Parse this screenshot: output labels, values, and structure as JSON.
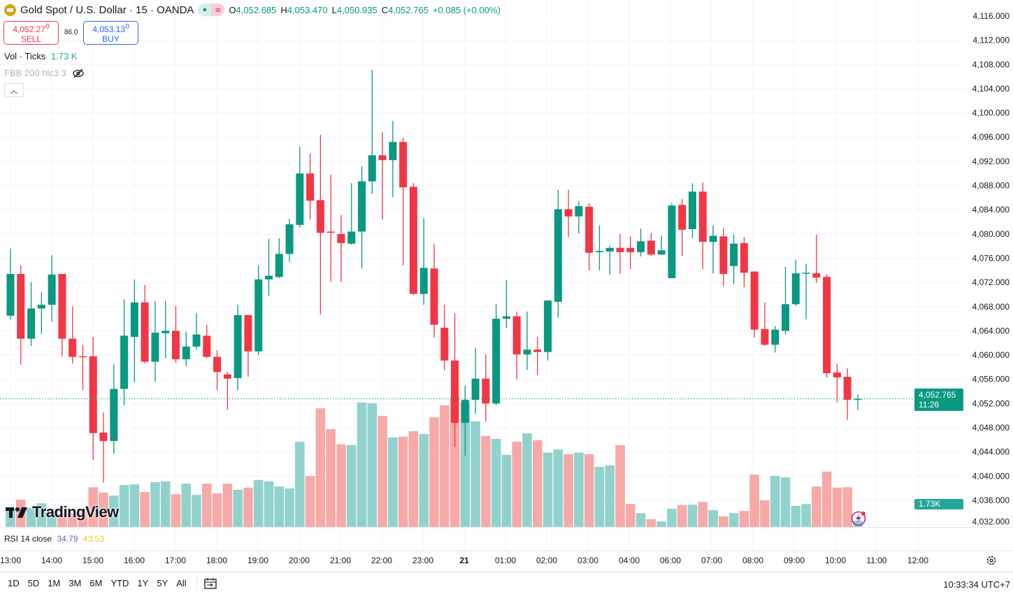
{
  "header": {
    "title": "Gold Spot / U.S. Dollar · 15 · OANDA",
    "ohlc": {
      "o_label": "O",
      "o": "4,052.685",
      "h_label": "H",
      "h": "4,053.470",
      "l_label": "L",
      "l": "4,050.935",
      "c_label": "C",
      "c": "4,052.765",
      "change": "+0.085 (+0.00%)"
    }
  },
  "trade": {
    "sell_price": "4,052.27",
    "sell_sup": "0",
    "sell_label": "SELL",
    "spread": "86.0",
    "buy_price": "4,053.13",
    "buy_sup": "0",
    "buy_label": "BUY"
  },
  "legend": {
    "vol_label": "Vol · Ticks",
    "vol_value": "1.73 K",
    "fbb": "FBB 200 hlc3 3"
  },
  "watermark": "TradingView",
  "price_tag": {
    "price": "4,052.765",
    "countdown": "11:26"
  },
  "volume_tag": "1.73K",
  "rsi": {
    "label": "RSI 14 close",
    "v1": "34.79",
    "v2": "43.53",
    "c1": "#7e57c2",
    "c2": "#f7c325"
  },
  "bottom": {
    "ranges": [
      "1D",
      "5D",
      "1M",
      "3M",
      "6M",
      "YTD",
      "1Y",
      "5Y",
      "All"
    ],
    "clock": "10:33:34 UTC+7"
  },
  "colors": {
    "up": "#089981",
    "down": "#f23645",
    "up_vol": "#92d2cc",
    "down_vol": "#f7a9a7"
  },
  "chart_data": {
    "type": "candlestick",
    "title": "Gold Spot / U.S. Dollar · 15 · OANDA",
    "interval_minutes": 15,
    "price_ticks": [
      "4,116.000",
      "4,112.000",
      "4,108.000",
      "4,104.000",
      "4,100.000",
      "4,096.000",
      "4,092.000",
      "4,088.000",
      "4,084.000",
      "4,080.000",
      "4,076.000",
      "4,072.000",
      "4,068.000",
      "4,064.000",
      "4,060.000",
      "4,056.000",
      "4,052.000",
      "4,048.000",
      "4,044.000",
      "4,040.000",
      "4,036.000",
      "4,032.000"
    ],
    "ylim": [
      4032,
      4116
    ],
    "time_ticks": [
      "13:00",
      "14:00",
      "15:00",
      "16:00",
      "17:00",
      "18:00",
      "19:00",
      "20:00",
      "21:00",
      "22:00",
      "23:00",
      "21",
      "01:00",
      "02:00",
      "03:00",
      "04:00",
      "06:00",
      "07:00",
      "08:00",
      "09:00",
      "10:00",
      "11:00",
      "12:00"
    ],
    "first_candle_time": "13:00",
    "candles_ohlc": [
      [
        4066.5,
        4077.6,
        4065.9,
        4073.4
      ],
      [
        4073.4,
        4074.8,
        4058.4,
        4062.7
      ],
      [
        4062.7,
        4072.0,
        4061.5,
        4067.7
      ],
      [
        4067.7,
        4070.4,
        4063.5,
        4068.3
      ],
      [
        4068.3,
        4076.5,
        4065.5,
        4073.3
      ],
      [
        4073.4,
        4073.4,
        4059.8,
        4062.7
      ],
      [
        4062.7,
        4068.0,
        4058.6,
        4059.7
      ],
      [
        4059.8,
        4061.7,
        4054.2,
        4059.7
      ],
      [
        4059.8,
        4063.0,
        4042.7,
        4047.1
      ],
      [
        4047.2,
        4050.5,
        4038.9,
        4045.8
      ],
      [
        4045.8,
        4058.5,
        4043.7,
        4054.4
      ],
      [
        4054.4,
        4069.2,
        4051.7,
        4063.2
      ],
      [
        4063.0,
        4072.5,
        4055.5,
        4068.7
      ],
      [
        4068.7,
        4071.6,
        4058.6,
        4058.9
      ],
      [
        4058.9,
        4068.9,
        4055.6,
        4063.7
      ],
      [
        4063.6,
        4068.9,
        4059.5,
        4064.0
      ],
      [
        4064.0,
        4068.1,
        4058.7,
        4059.3
      ],
      [
        4059.3,
        4063.9,
        4058.2,
        4061.4
      ],
      [
        4061.4,
        4066.9,
        4060.9,
        4063.4
      ],
      [
        4063.2,
        4065.0,
        4059.5,
        4059.7
      ],
      [
        4059.7,
        4060.8,
        4054.2,
        4057.2
      ],
      [
        4056.8,
        4057.2,
        4051.0,
        4056.1
      ],
      [
        4056.2,
        4068.3,
        4054.2,
        4066.6
      ],
      [
        4066.6,
        4066.7,
        4056.4,
        4060.6
      ],
      [
        4060.6,
        4074.8,
        4060.0,
        4072.5
      ],
      [
        4072.5,
        4079.2,
        4069.8,
        4073.1
      ],
      [
        4072.9,
        4079.3,
        4072.7,
        4076.7
      ],
      [
        4076.7,
        4082.5,
        4075.4,
        4081.6
      ],
      [
        4081.5,
        4094.4,
        4081.1,
        4090.0
      ],
      [
        4090.0,
        4093.3,
        4082.4,
        4085.5
      ],
      [
        4085.6,
        4096.4,
        4066.7,
        4080.2
      ],
      [
        4080.4,
        4089.8,
        4072.1,
        4080.2
      ],
      [
        4080.0,
        4083.1,
        4072.1,
        4078.5
      ],
      [
        4078.4,
        4088.4,
        4078.2,
        4080.4
      ],
      [
        4080.4,
        4091.2,
        4074.3,
        4088.7
      ],
      [
        4088.7,
        4107.1,
        4086.6,
        4093.0
      ],
      [
        4093.0,
        4096.8,
        4082.4,
        4092.2
      ],
      [
        4092.2,
        4098.7,
        4086.1,
        4095.2
      ],
      [
        4095.2,
        4095.9,
        4074.8,
        4087.7
      ],
      [
        4087.8,
        4088.4,
        4069.9,
        4070.1
      ],
      [
        4070.1,
        4082.6,
        4068.3,
        4074.4
      ],
      [
        4074.3,
        4078.4,
        4062.9,
        4065.0
      ],
      [
        4064.5,
        4068.3,
        4057.5,
        4059.1
      ],
      [
        4059.1,
        4066.9,
        4044.8,
        4048.8
      ],
      [
        4048.8,
        4054.9,
        4043.4,
        4052.6
      ],
      [
        4052.6,
        4061.2,
        4050.3,
        4056.1
      ],
      [
        4056.1,
        4060.1,
        4049.0,
        4052.0
      ],
      [
        4052.0,
        4068.4,
        4051.7,
        4066.0
      ],
      [
        4066.0,
        4072.4,
        4064.5,
        4066.4
      ],
      [
        4066.4,
        4067.2,
        4056.0,
        4060.1
      ],
      [
        4060.1,
        4067.2,
        4057.5,
        4060.9
      ],
      [
        4060.9,
        4063.0,
        4056.7,
        4060.5
      ],
      [
        4060.5,
        4069.1,
        4059.1,
        4069.0
      ],
      [
        4068.8,
        4087.3,
        4066.2,
        4084.1
      ],
      [
        4084.1,
        4087.3,
        4079.5,
        4082.9
      ],
      [
        4082.9,
        4085.4,
        4080.1,
        4084.6
      ],
      [
        4084.5,
        4085.1,
        4074.0,
        4076.9
      ],
      [
        4077.0,
        4081.4,
        4074.0,
        4077.2
      ],
      [
        4077.1,
        4078.1,
        4073.3,
        4077.7
      ],
      [
        4077.7,
        4080.0,
        4073.4,
        4077.0
      ],
      [
        4077.7,
        4079.6,
        4074.2,
        4077.0
      ],
      [
        4077.0,
        4080.9,
        4076.3,
        4078.8
      ],
      [
        4078.9,
        4080.2,
        4076.4,
        4076.6
      ],
      [
        4076.6,
        4079.7,
        4076.6,
        4077.3
      ],
      [
        4072.7,
        4085.1,
        4072.7,
        4084.7
      ],
      [
        4084.8,
        4085.8,
        4076.4,
        4080.7
      ],
      [
        4080.8,
        4088.4,
        4079.3,
        4087.0
      ],
      [
        4087.0,
        4088.5,
        4074.2,
        4078.7
      ],
      [
        4078.7,
        4081.4,
        4073.5,
        4079.7
      ],
      [
        4079.6,
        4081.0,
        4071.4,
        4073.4
      ],
      [
        4074.7,
        4079.9,
        4071.7,
        4078.4
      ],
      [
        4078.5,
        4079.5,
        4071.2,
        4073.6
      ],
      [
        4073.8,
        4073.8,
        4062.9,
        4064.2
      ],
      [
        4064.3,
        4068.7,
        4061.5,
        4061.7
      ],
      [
        4061.7,
        4064.8,
        4060.4,
        4064.2
      ],
      [
        4064.0,
        4074.6,
        4063.4,
        4068.4
      ],
      [
        4068.4,
        4075.7,
        4068.1,
        4073.5
      ],
      [
        4073.5,
        4075.1,
        4065.9,
        4073.6
      ],
      [
        4073.5,
        4079.9,
        4071.9,
        4072.8
      ],
      [
        4072.9,
        4073.3,
        4056.3,
        4057.0
      ],
      [
        4057.1,
        4058.6,
        4052.2,
        4056.3
      ],
      [
        4056.4,
        4057.8,
        4049.3,
        4052.6
      ],
      [
        4052.685,
        4053.47,
        4050.935,
        4052.765
      ]
    ],
    "volume_k": [
      5.2,
      7.5,
      5.2,
      6.5,
      5.0,
      3.6,
      3.8,
      5.0,
      10.9,
      9.4,
      8.6,
      11.5,
      11.7,
      9.6,
      12.3,
      12.5,
      9.0,
      11.9,
      8.8,
      11.9,
      9.2,
      11.9,
      10.2,
      10.8,
      12.9,
      12.5,
      11.1,
      10.6,
      23.4,
      14.0,
      32.6,
      26.9,
      22.7,
      22.5,
      34.2,
      34.0,
      30.5,
      24.6,
      24.8,
      26.3,
      25.5,
      30.1,
      33.4,
      35.9,
      34.2,
      29.0,
      25.0,
      24.2,
      19.8,
      23.4,
      25.7,
      23.8,
      20.4,
      21.3,
      20.0,
      20.4,
      20.0,
      16.5,
      16.9,
      22.5,
      6.3,
      3.8,
      2.1,
      1.5,
      5.0,
      6.0,
      6.1,
      6.9,
      4.6,
      2.9,
      3.8,
      4.4,
      14.4,
      7.3,
      14.0,
      13.6,
      5.8,
      6.3,
      11.1,
      15.2,
      10.8,
      10.9,
      1.73
    ],
    "last_price": 4052.765
  }
}
